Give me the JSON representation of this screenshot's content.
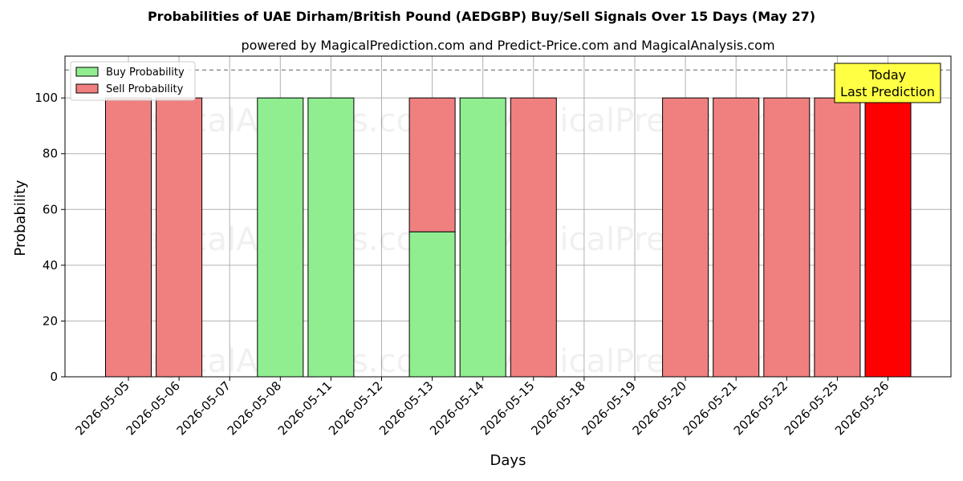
{
  "chart_data": {
    "type": "bar",
    "stacked": true,
    "title": "Probabilities of UAE Dirham/British Pound (AEDGBP) Buy/Sell Signals Over 15 Days (May 27)",
    "subtitle": "powered by MagicalPrediction.com and Predict-Price.com and MagicalAnalysis.com",
    "xlabel": "Days",
    "ylabel": "Probability",
    "ylim": [
      0,
      115
    ],
    "yticks": [
      0,
      20,
      40,
      60,
      80,
      100
    ],
    "grid": true,
    "legend_position": "top-left",
    "categories": [
      "2026-05-05",
      "2026-05-06",
      "2026-05-07",
      "2026-05-08",
      "2026-05-11",
      "2026-05-12",
      "2026-05-13",
      "2026-05-14",
      "2026-05-15",
      "2026-05-18",
      "2026-05-19",
      "2026-05-20",
      "2026-05-21",
      "2026-05-22",
      "2026-05-25",
      "2026-05-26"
    ],
    "series": [
      {
        "name": "Buy Probability",
        "color": "#90ee90",
        "values": [
          0,
          0,
          0,
          100,
          100,
          0,
          52,
          100,
          0,
          0,
          0,
          0,
          0,
          0,
          0,
          0
        ]
      },
      {
        "name": "Sell Probability",
        "color": "#f08080",
        "values": [
          100,
          100,
          0,
          0,
          0,
          0,
          48,
          0,
          100,
          0,
          0,
          100,
          100,
          100,
          100,
          100
        ]
      }
    ],
    "highlight": {
      "category": "2026-05-26",
      "color": "#ff0000"
    },
    "reference_line": {
      "y": 110,
      "style": "dashed",
      "color": "#808080"
    },
    "annotation": {
      "line1": "Today",
      "line2": "Last Prediction",
      "background": "#ffff44"
    },
    "watermarks": [
      "MagicalAnalysis.com",
      "MagicalPrediction.com"
    ]
  }
}
